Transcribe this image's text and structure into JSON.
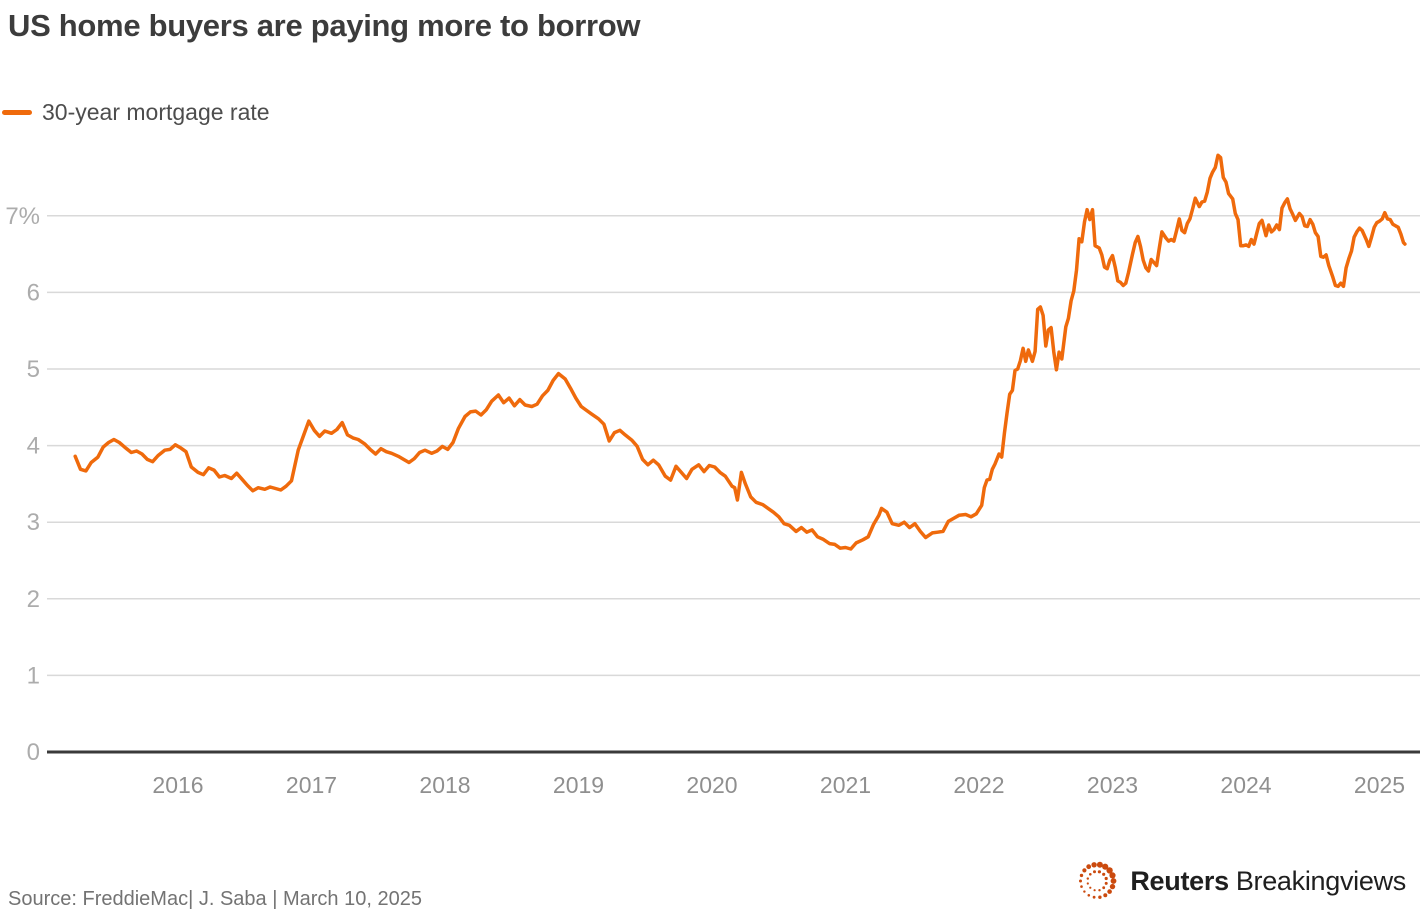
{
  "header": {
    "title": "US home buyers are paying more to borrow",
    "legend_label": "30-year mortgage rate"
  },
  "footer": {
    "source": "Source: FreddieMac| J. Saba | March 10, 2025",
    "logo_bold": "Reuters",
    "logo_regular": "Breakingviews"
  },
  "colors": {
    "line": "#ef6a0c",
    "grid": "#d9d9d9",
    "baseline": "#3a3a3a",
    "y_label": "#acacac",
    "x_label": "#8f8f8f",
    "title": "#3c3c3c",
    "legend_text": "#4d4d4d",
    "source_text": "#737373",
    "logo_dots": "#cb4a0e",
    "logo_text": "#1f1f1f"
  },
  "chart_data": {
    "type": "line",
    "title": "US home buyers are paying more to borrow",
    "series_name": "30-year mortgage rate",
    "xlabel": "",
    "ylabel": "30-year mortgage rate (%)",
    "x_unit": "decimal_year",
    "y_unit": "percent",
    "xlim": [
      2015.1,
      2025.3
    ],
    "ylim": [
      0,
      8
    ],
    "grid": "horizontal",
    "legend_position": "top-left",
    "y_ticks": [
      [
        0,
        "0"
      ],
      [
        1,
        "1"
      ],
      [
        2,
        "2"
      ],
      [
        3,
        "3"
      ],
      [
        4,
        "4"
      ],
      [
        5,
        "5"
      ],
      [
        6,
        "6"
      ],
      [
        7,
        "7%"
      ]
    ],
    "x_ticks": [
      [
        2016,
        "2016"
      ],
      [
        2017,
        "2017"
      ],
      [
        2018,
        "2018"
      ],
      [
        2019,
        "2019"
      ],
      [
        2020,
        "2020"
      ],
      [
        2021,
        "2021"
      ],
      [
        2022,
        "2022"
      ],
      [
        2023,
        "2023"
      ],
      [
        2024,
        "2024"
      ],
      [
        2025,
        "2025"
      ]
    ],
    "points": [
      [
        2015.23,
        3.86
      ],
      [
        2015.27,
        3.69
      ],
      [
        2015.31,
        3.67
      ],
      [
        2015.35,
        3.78
      ],
      [
        2015.4,
        3.85
      ],
      [
        2015.44,
        3.98
      ],
      [
        2015.48,
        4.04
      ],
      [
        2015.52,
        4.08
      ],
      [
        2015.56,
        4.04
      ],
      [
        2015.6,
        3.98
      ],
      [
        2015.65,
        3.91
      ],
      [
        2015.69,
        3.93
      ],
      [
        2015.73,
        3.89
      ],
      [
        2015.77,
        3.82
      ],
      [
        2015.81,
        3.79
      ],
      [
        2015.85,
        3.87
      ],
      [
        2015.9,
        3.94
      ],
      [
        2015.94,
        3.95
      ],
      [
        2015.98,
        4.01
      ],
      [
        2016.02,
        3.97
      ],
      [
        2016.06,
        3.92
      ],
      [
        2016.1,
        3.72
      ],
      [
        2016.15,
        3.65
      ],
      [
        2016.19,
        3.62
      ],
      [
        2016.23,
        3.71
      ],
      [
        2016.27,
        3.68
      ],
      [
        2016.31,
        3.59
      ],
      [
        2016.35,
        3.61
      ],
      [
        2016.4,
        3.57
      ],
      [
        2016.44,
        3.64
      ],
      [
        2016.48,
        3.56
      ],
      [
        2016.52,
        3.48
      ],
      [
        2016.56,
        3.41
      ],
      [
        2016.6,
        3.45
      ],
      [
        2016.65,
        3.43
      ],
      [
        2016.69,
        3.46
      ],
      [
        2016.73,
        3.44
      ],
      [
        2016.77,
        3.42
      ],
      [
        2016.81,
        3.47
      ],
      [
        2016.85,
        3.54
      ],
      [
        2016.9,
        3.94
      ],
      [
        2016.94,
        4.13
      ],
      [
        2016.98,
        4.32
      ],
      [
        2017.02,
        4.2
      ],
      [
        2017.06,
        4.12
      ],
      [
        2017.1,
        4.19
      ],
      [
        2017.15,
        4.16
      ],
      [
        2017.19,
        4.21
      ],
      [
        2017.23,
        4.3
      ],
      [
        2017.27,
        4.14
      ],
      [
        2017.31,
        4.1
      ],
      [
        2017.35,
        4.08
      ],
      [
        2017.4,
        4.02
      ],
      [
        2017.44,
        3.95
      ],
      [
        2017.48,
        3.89
      ],
      [
        2017.52,
        3.96
      ],
      [
        2017.56,
        3.92
      ],
      [
        2017.6,
        3.9
      ],
      [
        2017.65,
        3.86
      ],
      [
        2017.69,
        3.82
      ],
      [
        2017.73,
        3.78
      ],
      [
        2017.77,
        3.83
      ],
      [
        2017.81,
        3.91
      ],
      [
        2017.85,
        3.94
      ],
      [
        2017.9,
        3.9
      ],
      [
        2017.94,
        3.93
      ],
      [
        2017.98,
        3.99
      ],
      [
        2018.02,
        3.95
      ],
      [
        2018.06,
        4.04
      ],
      [
        2018.1,
        4.22
      ],
      [
        2018.15,
        4.38
      ],
      [
        2018.19,
        4.44
      ],
      [
        2018.23,
        4.45
      ],
      [
        2018.27,
        4.4
      ],
      [
        2018.31,
        4.47
      ],
      [
        2018.35,
        4.58
      ],
      [
        2018.4,
        4.66
      ],
      [
        2018.44,
        4.56
      ],
      [
        2018.48,
        4.62
      ],
      [
        2018.52,
        4.52
      ],
      [
        2018.56,
        4.6
      ],
      [
        2018.6,
        4.53
      ],
      [
        2018.65,
        4.51
      ],
      [
        2018.69,
        4.54
      ],
      [
        2018.73,
        4.65
      ],
      [
        2018.77,
        4.72
      ],
      [
        2018.81,
        4.85
      ],
      [
        2018.85,
        4.94
      ],
      [
        2018.9,
        4.87
      ],
      [
        2018.94,
        4.75
      ],
      [
        2018.98,
        4.62
      ],
      [
        2019.02,
        4.51
      ],
      [
        2019.06,
        4.46
      ],
      [
        2019.1,
        4.41
      ],
      [
        2019.15,
        4.35
      ],
      [
        2019.19,
        4.28
      ],
      [
        2019.23,
        4.06
      ],
      [
        2019.27,
        4.17
      ],
      [
        2019.31,
        4.2
      ],
      [
        2019.35,
        4.14
      ],
      [
        2019.4,
        4.07
      ],
      [
        2019.44,
        3.99
      ],
      [
        2019.48,
        3.82
      ],
      [
        2019.52,
        3.75
      ],
      [
        2019.56,
        3.81
      ],
      [
        2019.6,
        3.75
      ],
      [
        2019.65,
        3.6
      ],
      [
        2019.69,
        3.55
      ],
      [
        2019.73,
        3.73
      ],
      [
        2019.77,
        3.65
      ],
      [
        2019.81,
        3.57
      ],
      [
        2019.85,
        3.69
      ],
      [
        2019.9,
        3.75
      ],
      [
        2019.94,
        3.66
      ],
      [
        2019.98,
        3.74
      ],
      [
        2020.02,
        3.72
      ],
      [
        2020.06,
        3.65
      ],
      [
        2020.1,
        3.6
      ],
      [
        2020.15,
        3.47
      ],
      [
        2020.17,
        3.45
      ],
      [
        2020.19,
        3.29
      ],
      [
        2020.22,
        3.65
      ],
      [
        2020.25,
        3.5
      ],
      [
        2020.29,
        3.33
      ],
      [
        2020.33,
        3.26
      ],
      [
        2020.38,
        3.23
      ],
      [
        2020.42,
        3.18
      ],
      [
        2020.46,
        3.13
      ],
      [
        2020.5,
        3.07
      ],
      [
        2020.54,
        2.98
      ],
      [
        2020.58,
        2.96
      ],
      [
        2020.63,
        2.88
      ],
      [
        2020.67,
        2.93
      ],
      [
        2020.71,
        2.87
      ],
      [
        2020.75,
        2.9
      ],
      [
        2020.79,
        2.81
      ],
      [
        2020.83,
        2.78
      ],
      [
        2020.88,
        2.72
      ],
      [
        2020.92,
        2.71
      ],
      [
        2020.96,
        2.66
      ],
      [
        2021.0,
        2.67
      ],
      [
        2021.04,
        2.65
      ],
      [
        2021.08,
        2.73
      ],
      [
        2021.13,
        2.77
      ],
      [
        2021.17,
        2.81
      ],
      [
        2021.21,
        2.97
      ],
      [
        2021.25,
        3.09
      ],
      [
        2021.27,
        3.18
      ],
      [
        2021.31,
        3.13
      ],
      [
        2021.35,
        2.98
      ],
      [
        2021.4,
        2.96
      ],
      [
        2021.44,
        3.0
      ],
      [
        2021.48,
        2.93
      ],
      [
        2021.52,
        2.98
      ],
      [
        2021.56,
        2.88
      ],
      [
        2021.6,
        2.8
      ],
      [
        2021.65,
        2.86
      ],
      [
        2021.69,
        2.87
      ],
      [
        2021.73,
        2.88
      ],
      [
        2021.77,
        3.01
      ],
      [
        2021.81,
        3.05
      ],
      [
        2021.85,
        3.09
      ],
      [
        2021.9,
        3.1
      ],
      [
        2021.94,
        3.07
      ],
      [
        2021.98,
        3.11
      ],
      [
        2022.02,
        3.22
      ],
      [
        2022.04,
        3.45
      ],
      [
        2022.06,
        3.55
      ],
      [
        2022.08,
        3.56
      ],
      [
        2022.1,
        3.69
      ],
      [
        2022.12,
        3.76
      ],
      [
        2022.15,
        3.89
      ],
      [
        2022.17,
        3.85
      ],
      [
        2022.19,
        4.16
      ],
      [
        2022.21,
        4.42
      ],
      [
        2022.23,
        4.67
      ],
      [
        2022.25,
        4.72
      ],
      [
        2022.27,
        4.98
      ],
      [
        2022.29,
        5.0
      ],
      [
        2022.31,
        5.11
      ],
      [
        2022.33,
        5.27
      ],
      [
        2022.35,
        5.1
      ],
      [
        2022.37,
        5.25
      ],
      [
        2022.4,
        5.1
      ],
      [
        2022.42,
        5.23
      ],
      [
        2022.44,
        5.78
      ],
      [
        2022.46,
        5.81
      ],
      [
        2022.48,
        5.7
      ],
      [
        2022.5,
        5.3
      ],
      [
        2022.52,
        5.51
      ],
      [
        2022.54,
        5.54
      ],
      [
        2022.56,
        5.22
      ],
      [
        2022.58,
        4.99
      ],
      [
        2022.6,
        5.22
      ],
      [
        2022.62,
        5.13
      ],
      [
        2022.65,
        5.55
      ],
      [
        2022.67,
        5.66
      ],
      [
        2022.69,
        5.89
      ],
      [
        2022.71,
        6.02
      ],
      [
        2022.73,
        6.29
      ],
      [
        2022.75,
        6.7
      ],
      [
        2022.77,
        6.66
      ],
      [
        2022.79,
        6.92
      ],
      [
        2022.81,
        7.08
      ],
      [
        2022.83,
        6.95
      ],
      [
        2022.85,
        7.08
      ],
      [
        2022.87,
        6.61
      ],
      [
        2022.9,
        6.58
      ],
      [
        2022.92,
        6.49
      ],
      [
        2022.94,
        6.33
      ],
      [
        2022.96,
        6.31
      ],
      [
        2022.98,
        6.42
      ],
      [
        2023.0,
        6.48
      ],
      [
        2023.02,
        6.33
      ],
      [
        2023.04,
        6.15
      ],
      [
        2023.06,
        6.13
      ],
      [
        2023.08,
        6.09
      ],
      [
        2023.1,
        6.12
      ],
      [
        2023.12,
        6.26
      ],
      [
        2023.15,
        6.5
      ],
      [
        2023.17,
        6.65
      ],
      [
        2023.19,
        6.73
      ],
      [
        2023.21,
        6.6
      ],
      [
        2023.23,
        6.42
      ],
      [
        2023.25,
        6.32
      ],
      [
        2023.27,
        6.28
      ],
      [
        2023.29,
        6.43
      ],
      [
        2023.31,
        6.39
      ],
      [
        2023.33,
        6.35
      ],
      [
        2023.35,
        6.57
      ],
      [
        2023.37,
        6.79
      ],
      [
        2023.4,
        6.71
      ],
      [
        2023.42,
        6.67
      ],
      [
        2023.44,
        6.69
      ],
      [
        2023.46,
        6.67
      ],
      [
        2023.48,
        6.81
      ],
      [
        2023.5,
        6.96
      ],
      [
        2023.52,
        6.81
      ],
      [
        2023.54,
        6.78
      ],
      [
        2023.56,
        6.9
      ],
      [
        2023.58,
        6.96
      ],
      [
        2023.6,
        7.09
      ],
      [
        2023.62,
        7.23
      ],
      [
        2023.65,
        7.12
      ],
      [
        2023.67,
        7.18
      ],
      [
        2023.69,
        7.19
      ],
      [
        2023.71,
        7.31
      ],
      [
        2023.73,
        7.49
      ],
      [
        2023.75,
        7.57
      ],
      [
        2023.77,
        7.63
      ],
      [
        2023.79,
        7.79
      ],
      [
        2023.81,
        7.76
      ],
      [
        2023.83,
        7.5
      ],
      [
        2023.85,
        7.44
      ],
      [
        2023.87,
        7.29
      ],
      [
        2023.9,
        7.22
      ],
      [
        2023.92,
        7.03
      ],
      [
        2023.94,
        6.95
      ],
      [
        2023.96,
        6.61
      ],
      [
        2023.98,
        6.61
      ],
      [
        2024.0,
        6.62
      ],
      [
        2024.02,
        6.6
      ],
      [
        2024.04,
        6.69
      ],
      [
        2024.06,
        6.63
      ],
      [
        2024.08,
        6.77
      ],
      [
        2024.1,
        6.9
      ],
      [
        2024.12,
        6.94
      ],
      [
        2024.15,
        6.74
      ],
      [
        2024.17,
        6.88
      ],
      [
        2024.19,
        6.79
      ],
      [
        2024.21,
        6.82
      ],
      [
        2024.23,
        6.88
      ],
      [
        2024.25,
        6.82
      ],
      [
        2024.27,
        7.1
      ],
      [
        2024.29,
        7.17
      ],
      [
        2024.31,
        7.22
      ],
      [
        2024.33,
        7.09
      ],
      [
        2024.35,
        7.02
      ],
      [
        2024.37,
        6.94
      ],
      [
        2024.4,
        7.03
      ],
      [
        2024.42,
        6.99
      ],
      [
        2024.44,
        6.87
      ],
      [
        2024.46,
        6.86
      ],
      [
        2024.48,
        6.95
      ],
      [
        2024.5,
        6.89
      ],
      [
        2024.52,
        6.78
      ],
      [
        2024.54,
        6.73
      ],
      [
        2024.56,
        6.47
      ],
      [
        2024.58,
        6.46
      ],
      [
        2024.6,
        6.49
      ],
      [
        2024.62,
        6.35
      ],
      [
        2024.65,
        6.2
      ],
      [
        2024.67,
        6.09
      ],
      [
        2024.69,
        6.08
      ],
      [
        2024.71,
        6.12
      ],
      [
        2024.73,
        6.08
      ],
      [
        2024.75,
        6.32
      ],
      [
        2024.77,
        6.44
      ],
      [
        2024.79,
        6.54
      ],
      [
        2024.81,
        6.72
      ],
      [
        2024.83,
        6.79
      ],
      [
        2024.85,
        6.84
      ],
      [
        2024.87,
        6.81
      ],
      [
        2024.9,
        6.69
      ],
      [
        2024.92,
        6.6
      ],
      [
        2024.94,
        6.72
      ],
      [
        2024.96,
        6.85
      ],
      [
        2024.98,
        6.91
      ],
      [
        2025.0,
        6.93
      ],
      [
        2025.02,
        6.96
      ],
      [
        2025.04,
        7.04
      ],
      [
        2025.06,
        6.96
      ],
      [
        2025.08,
        6.95
      ],
      [
        2025.1,
        6.89
      ],
      [
        2025.12,
        6.87
      ],
      [
        2025.14,
        6.85
      ],
      [
        2025.16,
        6.76
      ],
      [
        2025.18,
        6.65
      ],
      [
        2025.19,
        6.63
      ]
    ]
  }
}
